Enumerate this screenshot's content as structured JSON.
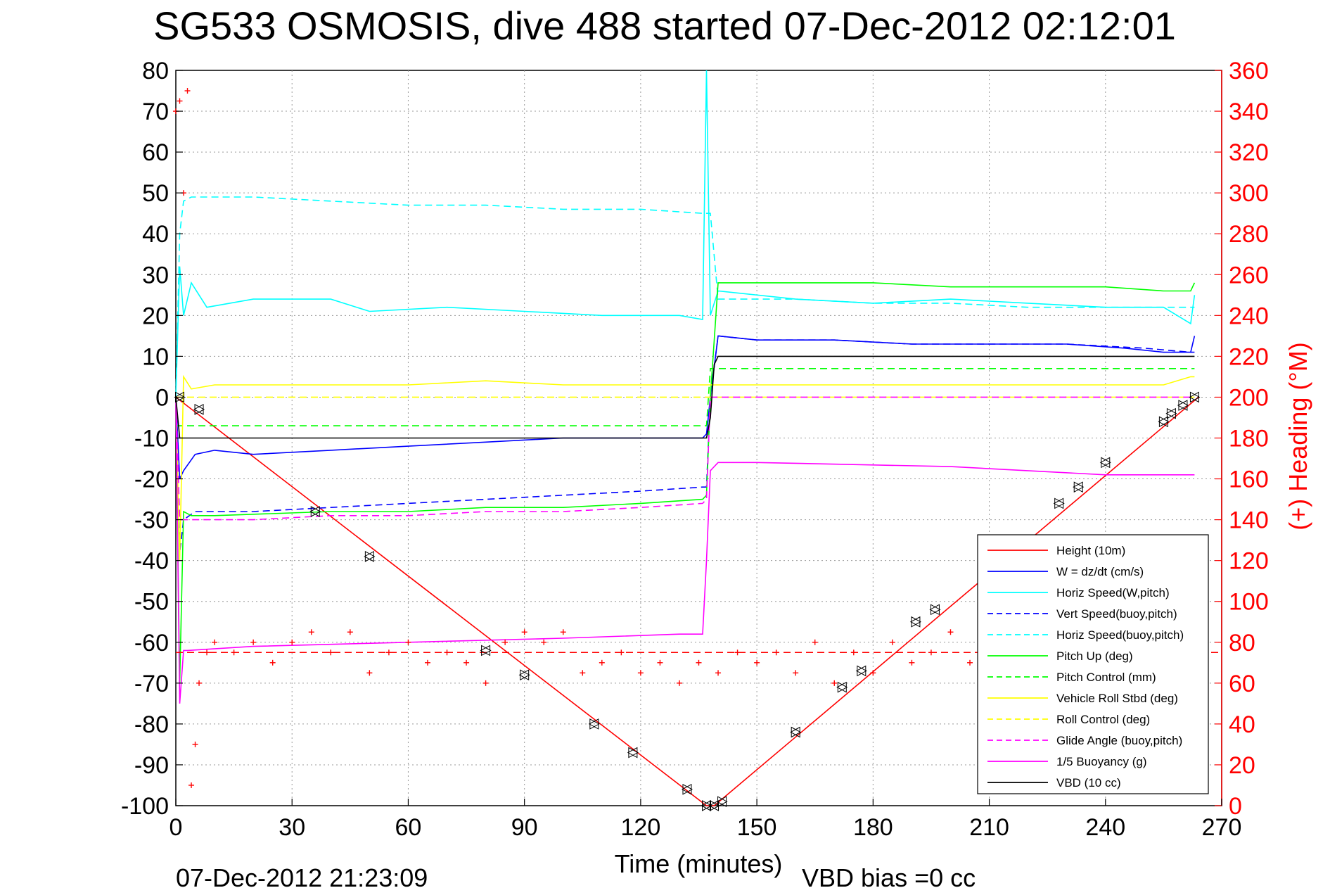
{
  "chart_data": {
    "type": "line",
    "title": "SG533 OSMOSIS, dive 488 started 07-Dec-2012 02:12:01",
    "xlabel": "Time (minutes)",
    "ylabel": "",
    "ylabel_right": "(+) Heading (°M)",
    "xlim": [
      0,
      270
    ],
    "ylim": [
      -100,
      80
    ],
    "ylim_right": [
      0,
      360
    ],
    "x_ticks": [
      "0",
      "30",
      "60",
      "90",
      "120",
      "150",
      "180",
      "210",
      "240",
      "270"
    ],
    "y_ticks": [
      "80",
      "70",
      "60",
      "50",
      "40",
      "30",
      "20",
      "10",
      "0",
      "-10",
      "-20",
      "-30",
      "-40",
      "-50",
      "-60",
      "-70",
      "-80",
      "-90",
      "-100"
    ],
    "y_ticks_right": [
      "360",
      "340",
      "320",
      "300",
      "280",
      "260",
      "240",
      "220",
      "200",
      "180",
      "160",
      "140",
      "120",
      "100",
      "80",
      "60",
      "40",
      "20",
      "0"
    ],
    "grid": true,
    "legend_position": "bottom-right",
    "footer_left": "07-Dec-2012 21:23:09",
    "footer_right": "VBD bias =0 cc",
    "series": [
      {
        "name": "Height (10m)",
        "color": "#ff0000",
        "style": "solid",
        "x": [
          0,
          137,
          139,
          264
        ],
        "y": [
          0,
          -100,
          -100,
          0
        ]
      },
      {
        "name": "W = dz/dt (cm/s)",
        "color": "#0000ff",
        "style": "solid",
        "x": [
          0,
          1,
          2,
          5,
          10,
          20,
          40,
          60,
          80,
          100,
          120,
          136,
          137,
          138,
          140,
          150,
          170,
          190,
          210,
          230,
          245,
          255,
          262,
          263
        ],
        "y": [
          0,
          -20,
          -18,
          -14,
          -13,
          -14,
          -13,
          -12,
          -11,
          -10,
          -10,
          -10,
          -9,
          0,
          15,
          14,
          14,
          13,
          13,
          13,
          12,
          11,
          11,
          15
        ]
      },
      {
        "name": "Horiz Speed(W,pitch)",
        "color": "#00ffff",
        "style": "solid",
        "x": [
          0,
          1,
          2,
          4,
          8,
          20,
          40,
          50,
          70,
          90,
          110,
          130,
          136,
          137,
          138,
          140,
          160,
          180,
          200,
          220,
          240,
          255,
          262,
          263
        ],
        "y": [
          0,
          32,
          20,
          28,
          22,
          24,
          24,
          21,
          22,
          21,
          20,
          20,
          19,
          80,
          20,
          26,
          24,
          23,
          24,
          23,
          22,
          22,
          18,
          25
        ]
      },
      {
        "name": "Vert Speed(buoy,pitch)",
        "color": "#0000ff",
        "style": "dashed",
        "x": [
          0,
          1,
          2,
          5,
          20,
          40,
          60,
          80,
          100,
          120,
          136,
          137,
          138,
          140,
          150,
          170,
          190,
          210,
          230,
          250,
          262,
          263
        ],
        "y": [
          0,
          -38,
          -30,
          -28,
          -28,
          -27,
          -26,
          -25,
          -24,
          -23,
          -22,
          -22,
          0,
          15,
          14,
          14,
          13,
          13,
          13,
          12,
          11,
          11
        ]
      },
      {
        "name": "Horiz Speed(buoy,pitch)",
        "color": "#00ffff",
        "style": "dashed",
        "x": [
          0,
          1,
          2,
          4,
          20,
          40,
          60,
          80,
          100,
          120,
          136,
          137,
          138,
          140,
          160,
          180,
          200,
          220,
          240,
          262,
          263
        ],
        "y": [
          0,
          40,
          48,
          49,
          49,
          48,
          47,
          47,
          46,
          46,
          45,
          45,
          45,
          24,
          24,
          23,
          23,
          22,
          22,
          22,
          22
        ]
      },
      {
        "name": "Pitch Up (deg)",
        "color": "#00ff00",
        "style": "solid",
        "x": [
          0,
          1,
          2,
          4,
          10,
          40,
          60,
          80,
          100,
          120,
          136,
          137,
          138,
          140,
          160,
          180,
          200,
          220,
          240,
          255,
          262,
          263
        ],
        "y": [
          0,
          -70,
          -28,
          -29,
          -29,
          -28,
          -28,
          -27,
          -27,
          -26,
          -25,
          -24,
          0,
          28,
          28,
          28,
          27,
          27,
          27,
          26,
          26,
          28
        ]
      },
      {
        "name": "Pitch Control (mm)",
        "color": "#00ff00",
        "style": "dashed",
        "x": [
          0,
          2,
          137,
          138,
          263
        ],
        "y": [
          -7,
          -7,
          -7,
          7,
          7
        ]
      },
      {
        "name": "Vehicle Roll Stbd (deg)",
        "color": "#ffff00",
        "style": "solid",
        "x": [
          0,
          1,
          2,
          4,
          10,
          40,
          60,
          80,
          100,
          120,
          136,
          137,
          138,
          140,
          160,
          180,
          200,
          220,
          240,
          255,
          262,
          263
        ],
        "y": [
          0,
          -40,
          5,
          2,
          3,
          3,
          3,
          4,
          3,
          3,
          3,
          3,
          3,
          3,
          3,
          3,
          3,
          3,
          3,
          3,
          5,
          5
        ]
      },
      {
        "name": "Roll Control (deg)",
        "color": "#ffff00",
        "style": "dashed",
        "x": [
          0,
          2,
          137,
          138,
          263
        ],
        "y": [
          0,
          0,
          0,
          0,
          0
        ]
      },
      {
        "name": "Glide Angle (buoy,pitch)",
        "color": "#ff00ff",
        "style": "dashed",
        "x": [
          0,
          1,
          2,
          5,
          20,
          40,
          60,
          80,
          100,
          120,
          136,
          137,
          138,
          140,
          160,
          200,
          240,
          262,
          263
        ],
        "y": [
          0,
          -30,
          -30,
          -30,
          -30,
          -29,
          -29,
          -28,
          -28,
          -27,
          -26,
          -25,
          0,
          0,
          0,
          0,
          0,
          0,
          0
        ]
      },
      {
        "name": "1/5 Buoyancy (g)",
        "color": "#ff00ff",
        "style": "solid",
        "x": [
          0,
          1,
          2,
          3,
          20,
          60,
          100,
          130,
          136,
          137,
          138,
          140,
          150,
          200,
          240,
          262,
          263
        ],
        "y": [
          0,
          -75,
          -62,
          -62,
          -61,
          -60,
          -59,
          -58,
          -58,
          -40,
          -18,
          -16,
          -16,
          -17,
          -19,
          -19,
          -19
        ]
      },
      {
        "name": "VBD (10 cc)",
        "color": "#000000",
        "style": "solid",
        "x": [
          0,
          1,
          2,
          137,
          138,
          139,
          140,
          263
        ],
        "y": [
          0,
          -10,
          -10,
          -10,
          -5,
          8,
          10,
          10
        ]
      }
    ],
    "heading": {
      "axis": "right",
      "color": "#ff0000",
      "marker": "+",
      "mean_line": 75,
      "x": [
        0,
        1,
        2,
        3,
        4,
        5,
        6,
        8,
        10,
        15,
        20,
        25,
        30,
        35,
        40,
        45,
        50,
        55,
        60,
        65,
        70,
        75,
        80,
        85,
        90,
        95,
        100,
        105,
        110,
        115,
        120,
        125,
        130,
        135,
        140,
        145,
        150,
        155,
        160,
        165,
        170,
        175,
        180,
        185,
        190,
        195,
        200,
        205,
        210
      ],
      "y": [
        340,
        345,
        300,
        350,
        10,
        30,
        60,
        75,
        80,
        75,
        80,
        70,
        80,
        85,
        75,
        85,
        65,
        75,
        80,
        70,
        75,
        70,
        60,
        80,
        85,
        80,
        85,
        65,
        70,
        75,
        65,
        70,
        60,
        70,
        65,
        75,
        70,
        75,
        65,
        80,
        60,
        75,
        65,
        80,
        70,
        75,
        85,
        70,
        65
      ]
    },
    "diamond_markers": {
      "x": [
        1,
        6,
        36,
        50,
        80,
        90,
        108,
        118,
        132,
        137,
        139,
        141,
        160,
        172,
        177,
        191,
        196,
        228,
        233,
        240,
        255,
        257,
        260,
        263
      ],
      "y": [
        0,
        -3,
        -28,
        -39,
        -62,
        -68,
        -80,
        -87,
        -96,
        -100,
        -100,
        -99,
        -82,
        -71,
        -67,
        -55,
        -52,
        -26,
        -22,
        -16,
        -6,
        -4,
        -2,
        0
      ]
    }
  }
}
